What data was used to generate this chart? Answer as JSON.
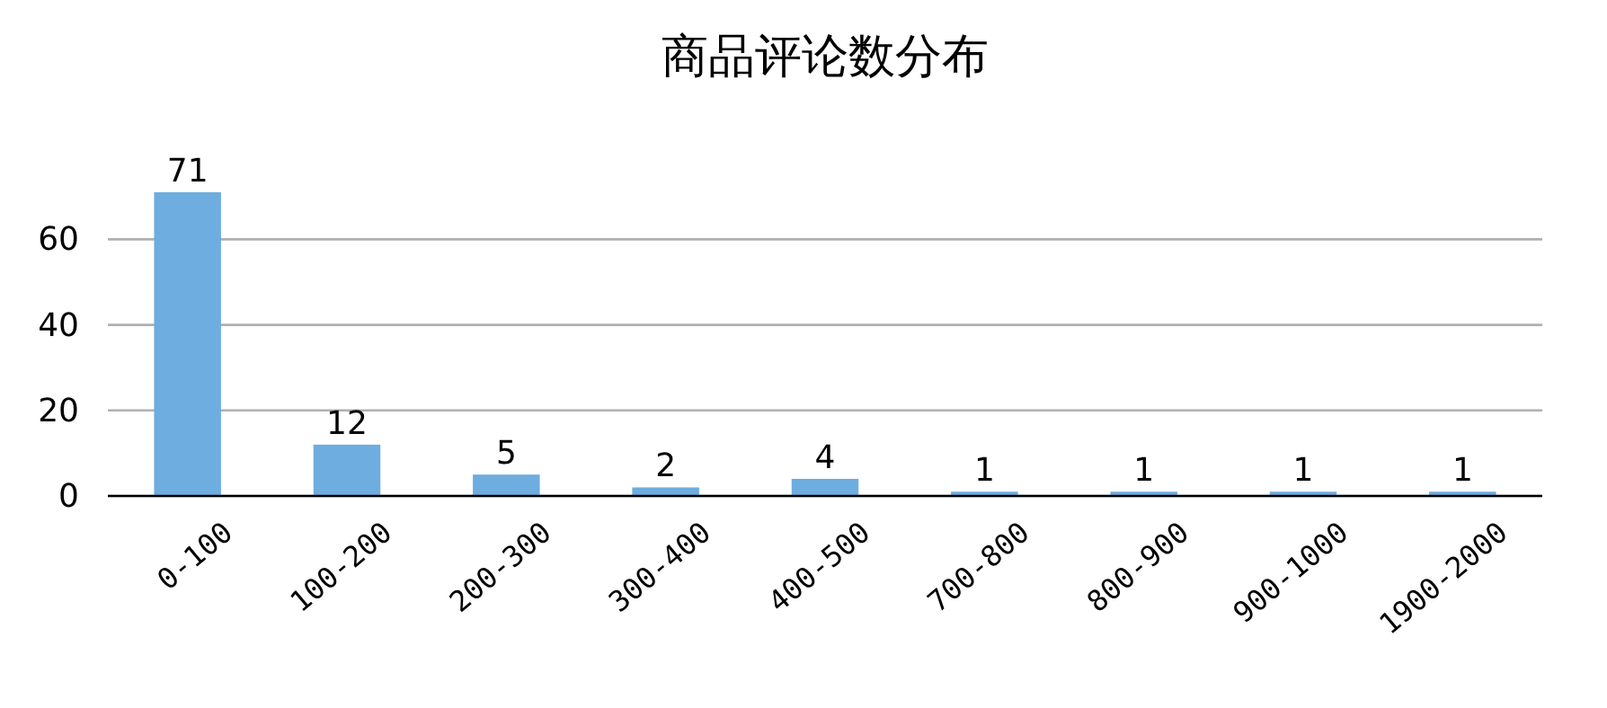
{
  "chart_data": {
    "type": "bar",
    "title": "商品评论数分布",
    "categories": [
      "0-100",
      "100-200",
      "200-300",
      "300-400",
      "400-500",
      "700-800",
      "800-900",
      "900-1000",
      "1900-2000"
    ],
    "values": [
      71,
      12,
      5,
      2,
      4,
      1,
      1,
      1,
      1
    ],
    "color": "#6daddf",
    "ylim": [
      0,
      71
    ],
    "yticks": [
      0,
      20,
      40,
      60
    ],
    "grid": "y",
    "data_labels": true
  }
}
